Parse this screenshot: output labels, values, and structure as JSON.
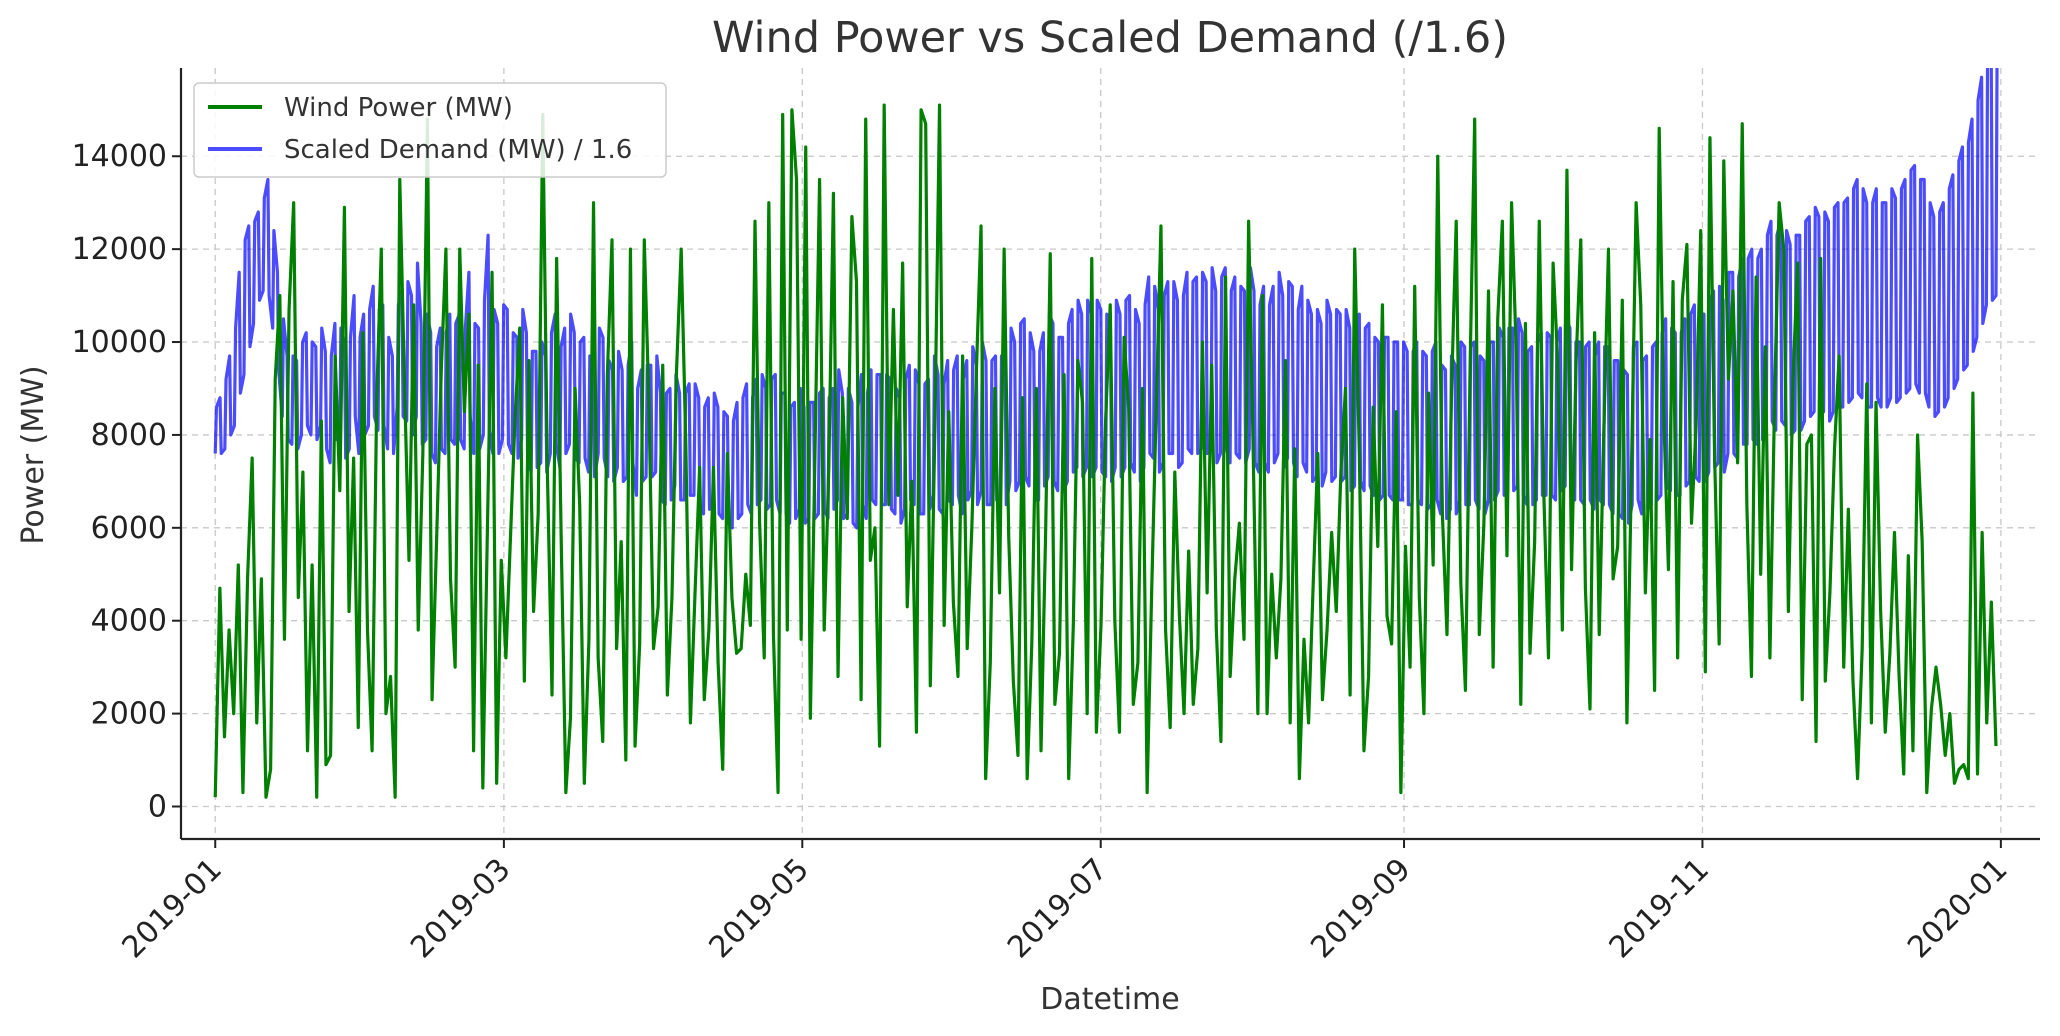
{
  "chart_data": {
    "type": "line",
    "title": "Wind Power vs Scaled Demand (/1.6)",
    "xlabel": "Datetime",
    "ylabel": "Power (MW)",
    "x_range": [
      "2018-12-25",
      "2020-01-09"
    ],
    "ylim": [
      -700,
      15900
    ],
    "grid": true,
    "legend_position": "top-left",
    "x_ticks": [
      "2019-01",
      "2019-03",
      "2019-05",
      "2019-07",
      "2019-09",
      "2019-11",
      "2020-01"
    ],
    "y_ticks": [
      0,
      2000,
      4000,
      6000,
      8000,
      10000,
      12000,
      14000
    ],
    "series": [
      {
        "name": "Wind Power (MW)",
        "color": "#008000",
        "sampling": "approximate daily values (2019-01-01 to 2019-12-31)",
        "values": [
          200,
          4700,
          1500,
          3800,
          2000,
          5200,
          300,
          4900,
          7500,
          1800,
          4900,
          200,
          800,
          9200,
          11000,
          3600,
          10700,
          13000,
          4500,
          7200,
          1200,
          5200,
          200,
          8300,
          900,
          1100,
          9700,
          6800,
          12900,
          4200,
          7500,
          1700,
          10200,
          3800,
          1200,
          8800,
          12000,
          2000,
          2800,
          200,
          13500,
          9200,
          5300,
          10800,
          3800,
          7600,
          14800,
          2300,
          5800,
          9400,
          12000,
          4900,
          3000,
          12000,
          8500,
          10600,
          1200,
          9500,
          400,
          6000,
          11500,
          500,
          5300,
          3200,
          5800,
          8400,
          10300,
          2700,
          9600,
          4200,
          6300,
          14900,
          7200,
          2400,
          11800,
          5700,
          300,
          1900,
          9000,
          6500,
          500,
          3600,
          13000,
          3200,
          1400,
          9300,
          12200,
          3400,
          5700,
          1000,
          12000,
          1300,
          3500,
          12200,
          8700,
          3400,
          4300,
          9500,
          2400,
          4500,
          9400,
          12000,
          7800,
          1800,
          4600,
          7300,
          2300,
          3800,
          7300,
          3100,
          800,
          7600,
          4500,
          3300,
          3400,
          5000,
          3900,
          12600,
          6100,
          3200,
          13000,
          3700,
          300,
          14900,
          3800,
          15000,
          13500,
          3600,
          14200,
          1900,
          7600,
          13500,
          3800,
          7300,
          13200,
          2800,
          8800,
          6200,
          12700,
          11300,
          2300,
          14800,
          5300,
          6000,
          1300,
          15100,
          6500,
          10700,
          6700,
          11700,
          4300,
          7000,
          1600,
          15000,
          14700,
          2600,
          8200,
          15100,
          3900,
          8500,
          4400,
          2800,
          9700,
          3400,
          6000,
          9400,
          12500,
          600,
          3100,
          9000,
          4600,
          12000,
          5800,
          2700,
          1100,
          8800,
          600,
          3500,
          9000,
          1200,
          5900,
          11900,
          2200,
          3300,
          9300,
          600,
          3900,
          9600,
          8700,
          2000,
          11800,
          1600,
          3900,
          8300,
          10800,
          4000,
          1600,
          10100,
          8600,
          2200,
          3100,
          9000,
          300,
          4700,
          8700,
          12500,
          3800,
          1700,
          7200,
          4100,
          2000,
          5500,
          2200,
          3400,
          10000,
          4600,
          9500,
          3800,
          1400,
          11400,
          2800,
          4900,
          6100,
          3600,
          12600,
          7600,
          2000,
          11000,
          2000,
          5000,
          3200,
          4900,
          9600,
          1800,
          7700,
          600,
          3600,
          1800,
          4800,
          7600,
          2300,
          3800,
          5900,
          4200,
          7200,
          9000,
          2400,
          12000,
          7600,
          1200,
          2800,
          8600,
          5600,
          10800,
          4100,
          3500,
          8500,
          300,
          5600,
          3000,
          11200,
          4500,
          2000,
          8900,
          5200,
          14000,
          6300,
          3700,
          9000,
          12600,
          4800,
          2500,
          9400,
          14800,
          3700,
          6100,
          11100,
          3000,
          10500,
          12600,
          5400,
          13000,
          9800,
          2200,
          10400,
          3300,
          5700,
          12600,
          6700,
          3200,
          11700,
          9600,
          3800,
          13700,
          5100,
          9600,
          12200,
          4700,
          2100,
          10200,
          3700,
          8100,
          12000,
          4900,
          5600,
          10900,
          1800,
          7300,
          13000,
          10800,
          4600,
          7900,
          2500,
          14600,
          8400,
          5100,
          11300,
          3200,
          10900,
          12100,
          6100,
          8200,
          12400,
          2900,
          14400,
          7600,
          3500,
          13900,
          9200,
          11100,
          7400,
          14700,
          6500,
          2800,
          11400,
          5000,
          9900,
          3200,
          8700,
          13000,
          12000,
          4200,
          9200,
          11700,
          2300,
          7800,
          8000,
          1400,
          11800,
          2700,
          4600,
          7700,
          9700,
          3000,
          6400,
          2700,
          600,
          3400,
          9100,
          1800,
          8700,
          4200,
          1600,
          3300,
          5900,
          2800,
          700,
          5400,
          1200,
          8000,
          5700,
          300,
          2100,
          3000,
          2200,
          1100,
          2000,
          500,
          800,
          900,
          600,
          8900,
          700,
          5900,
          1800,
          4400,
          1300
        ]
      },
      {
        "name": "Scaled Demand (MW) / 1.6",
        "color": "#0000ff",
        "opacity": 0.7,
        "sampling": "approximate daily (min, max) envelope (2019-01-01 to 2019-12-31)",
        "lows": [
          7600,
          7600,
          7700,
          8000,
          8200,
          8900,
          9300,
          9900,
          10400,
          10900,
          11100,
          11000,
          10300,
          9400,
          8400,
          7900,
          7800,
          7700,
          8000,
          8200,
          8000,
          7900,
          8200,
          7700,
          7400,
          7900,
          7900,
          7500,
          7700,
          8400,
          7600,
          8000,
          8200,
          8400,
          8100,
          8200,
          7700,
          7600,
          8600,
          8400,
          8300,
          8000,
          8400,
          7800,
          7900,
          7600,
          7400,
          7700,
          7600,
          7900,
          7800,
          7900,
          7700,
          8400,
          7600,
          7700,
          8000,
          8100,
          7600,
          7600,
          7900,
          7800,
          7600,
          7500,
          7900,
          7500,
          7200,
          7300,
          7400,
          7200,
          7600,
          7800,
          7300,
          7600,
          7800,
          7500,
          7400,
          7500,
          7200,
          7100,
          7600,
          7500,
          7100,
          7000,
          7300,
          7000,
          7100,
          7400,
          6700,
          7000,
          7100,
          7100,
          7200,
          6600,
          6500,
          6600,
          6900,
          6600,
          6600,
          6700,
          6700,
          6500,
          6300,
          6400,
          6500,
          6300,
          6200,
          6100,
          6000,
          6200,
          6300,
          6500,
          6300,
          6500,
          6600,
          6400,
          6500,
          6600,
          6300,
          6300,
          6100,
          6200,
          6400,
          6100,
          6200,
          6200,
          6300,
          6400,
          6200,
          6400,
          6600,
          6200,
          6300,
          6100,
          6000,
          6500,
          6200,
          6600,
          6500,
          6500,
          6500,
          6400,
          6300,
          6100,
          6400,
          6600,
          6500,
          6300,
          6300,
          6400,
          6700,
          6400,
          6300,
          6600,
          6500,
          6700,
          6300,
          6600,
          6800,
          6500,
          6800,
          6500,
          6500,
          6600,
          6600,
          6500,
          7000,
          6800,
          7000,
          7100,
          6900,
          6600,
          6600,
          6900,
          7100,
          7000,
          6800,
          6800,
          7000,
          7200,
          7300,
          7100,
          7300,
          7100,
          7300,
          7200,
          7100,
          7000,
          7300,
          7100,
          7300,
          7400,
          7200,
          7000,
          7300,
          7600,
          7500,
          7200,
          7400,
          7600,
          7600,
          7300,
          7400,
          7700,
          7600,
          7600,
          7700,
          7600,
          7700,
          7400,
          7600,
          7700,
          7400,
          7600,
          7500,
          7400,
          7700,
          7400,
          7200,
          7400,
          7200,
          7400,
          7600,
          7300,
          7500,
          7400,
          7100,
          7400,
          7200,
          7000,
          7100,
          6900,
          7200,
          7000,
          7100,
          7000,
          7100,
          6800,
          6900,
          7000,
          6800,
          6900,
          6700,
          6600,
          6700,
          6700,
          6600,
          6600,
          6600,
          6500,
          6500,
          6600,
          6500,
          6400,
          6500,
          6600,
          6300,
          6200,
          6400,
          6300,
          6600,
          6500,
          6500,
          6600,
          6400,
          6300,
          6600,
          6600,
          6800,
          6700,
          6800,
          6800,
          6900,
          6700,
          6500,
          6500,
          6600,
          6700,
          6700,
          6700,
          6600,
          6800,
          6900,
          6800,
          6600,
          6600,
          6500,
          6600,
          6400,
          6600,
          6500,
          6500,
          6300,
          6300,
          6200,
          6100,
          6500,
          6600,
          6300,
          6400,
          6500,
          6600,
          6700,
          6900,
          6800,
          6700,
          6700,
          6900,
          7000,
          7100,
          7000,
          7000,
          7200,
          7300,
          7400,
          7200,
          7600,
          7600,
          7500,
          7800,
          7800,
          7900,
          7800,
          7900,
          8100,
          8300,
          8100,
          8300,
          8200,
          8000,
          8100,
          8100,
          8300,
          8400,
          8500,
          8400,
          8500,
          8300,
          8500,
          8600,
          8600,
          8700,
          8800,
          8900,
          8800,
          8600,
          8600,
          8800,
          8600,
          8600,
          8800,
          8700,
          8800,
          8900,
          9000,
          9100,
          8900,
          8900,
          8600,
          8400,
          8500,
          8600,
          8800,
          9000,
          9200,
          9400,
          9500,
          9800,
          10100,
          10400,
          10800,
          10900,
          11000
        ],
        "highs": [
          8600,
          8800,
          9200,
          9700,
          10300,
          11500,
          12200,
          12500,
          12600,
          12800,
          13100,
          13500,
          12400,
          11500,
          10500,
          9700,
          9700,
          9600,
          10000,
          10200,
          10000,
          9900,
          10300,
          9800,
          9700,
          10400,
          10300,
          9900,
          10100,
          11000,
          10100,
          10600,
          10700,
          11200,
          10700,
          10800,
          10100,
          9700,
          10800,
          11100,
          11300,
          11000,
          11700,
          10400,
          10600,
          10200,
          9900,
          10300,
          10200,
          10600,
          10400,
          10600,
          10300,
          11500,
          10400,
          10300,
          10900,
          12300,
          10700,
          10400,
          10800,
          10700,
          10200,
          10100,
          10700,
          10200,
          9800,
          9800,
          10000,
          9700,
          10200,
          10600,
          9900,
          10300,
          10600,
          10200,
          10000,
          10100,
          9700,
          9500,
          10300,
          10100,
          9600,
          9400,
          9800,
          9400,
          9500,
          10000,
          9000,
          9400,
          9500,
          9500,
          9700,
          8900,
          8900,
          9000,
          9300,
          8900,
          8900,
          9100,
          9100,
          8800,
          8600,
          8800,
          8900,
          8600,
          8500,
          8400,
          8300,
          8700,
          8800,
          9100,
          8800,
          9200,
          9300,
          9000,
          9200,
          9300,
          8900,
          8900,
          8600,
          8700,
          9000,
          8600,
          8700,
          8700,
          8900,
          9000,
          8800,
          9000,
          9400,
          8900,
          9000,
          8700,
          8600,
          9300,
          8900,
          9400,
          9300,
          9300,
          9300,
          9200,
          9000,
          8800,
          9200,
          9500,
          9400,
          9100,
          9100,
          9200,
          9700,
          9300,
          9100,
          9600,
          9400,
          9700,
          9200,
          9600,
          9900,
          9500,
          10000,
          9600,
          9600,
          9700,
          9700,
          9600,
          10300,
          10000,
          10400,
          10500,
          10200,
          9800,
          9800,
          10200,
          10600,
          10400,
          10100,
          10100,
          10400,
          10700,
          10900,
          10600,
          10900,
          10600,
          10900,
          10700,
          10600,
          10400,
          10900,
          10600,
          10900,
          11000,
          10700,
          10400,
          10800,
          11400,
          11200,
          10700,
          11000,
          11300,
          11300,
          10900,
          11000,
          11500,
          11300,
          11400,
          11500,
          11300,
          11600,
          11100,
          11400,
          11600,
          11100,
          11400,
          11200,
          11100,
          11600,
          11100,
          10800,
          11200,
          10800,
          11200,
          11500,
          11000,
          11300,
          11200,
          10700,
          11200,
          10900,
          10600,
          10700,
          10400,
          10900,
          10600,
          10700,
          10600,
          10700,
          10300,
          10500,
          10600,
          10300,
          10400,
          10100,
          10000,
          10100,
          10100,
          10000,
          10000,
          10000,
          9800,
          9800,
          10000,
          9800,
          9700,
          9800,
          10000,
          9500,
          9400,
          9700,
          9500,
          10000,
          9900,
          9900,
          10000,
          9700,
          9600,
          10000,
          10000,
          10300,
          10100,
          10300,
          10300,
          10500,
          10200,
          9800,
          9900,
          10000,
          10200,
          10200,
          10100,
          10000,
          10300,
          10500,
          10300,
          10000,
          10000,
          9900,
          10000,
          9700,
          10000,
          9900,
          9900,
          9600,
          9600,
          9400,
          9300,
          9900,
          10000,
          9600,
          9700,
          9900,
          10000,
          10200,
          10500,
          10300,
          10200,
          10200,
          10500,
          10600,
          10800,
          10600,
          10600,
          10900,
          11100,
          11200,
          10900,
          11500,
          11500,
          11400,
          11800,
          11800,
          12000,
          11800,
          12000,
          12300,
          12600,
          12300,
          12600,
          12400,
          12100,
          12300,
          12300,
          12600,
          12700,
          12900,
          12700,
          12800,
          12600,
          12900,
          13000,
          13000,
          13100,
          13300,
          13500,
          13300,
          13000,
          13000,
          13300,
          13000,
          13000,
          13300,
          13100,
          13300,
          13500,
          13700,
          13800,
          13500,
          13500,
          13000,
          12700,
          12800,
          13000,
          13300,
          13600,
          13900,
          14200,
          14300,
          14800,
          15200,
          15700,
          16300,
          16400,
          16600
        ]
      }
    ]
  }
}
